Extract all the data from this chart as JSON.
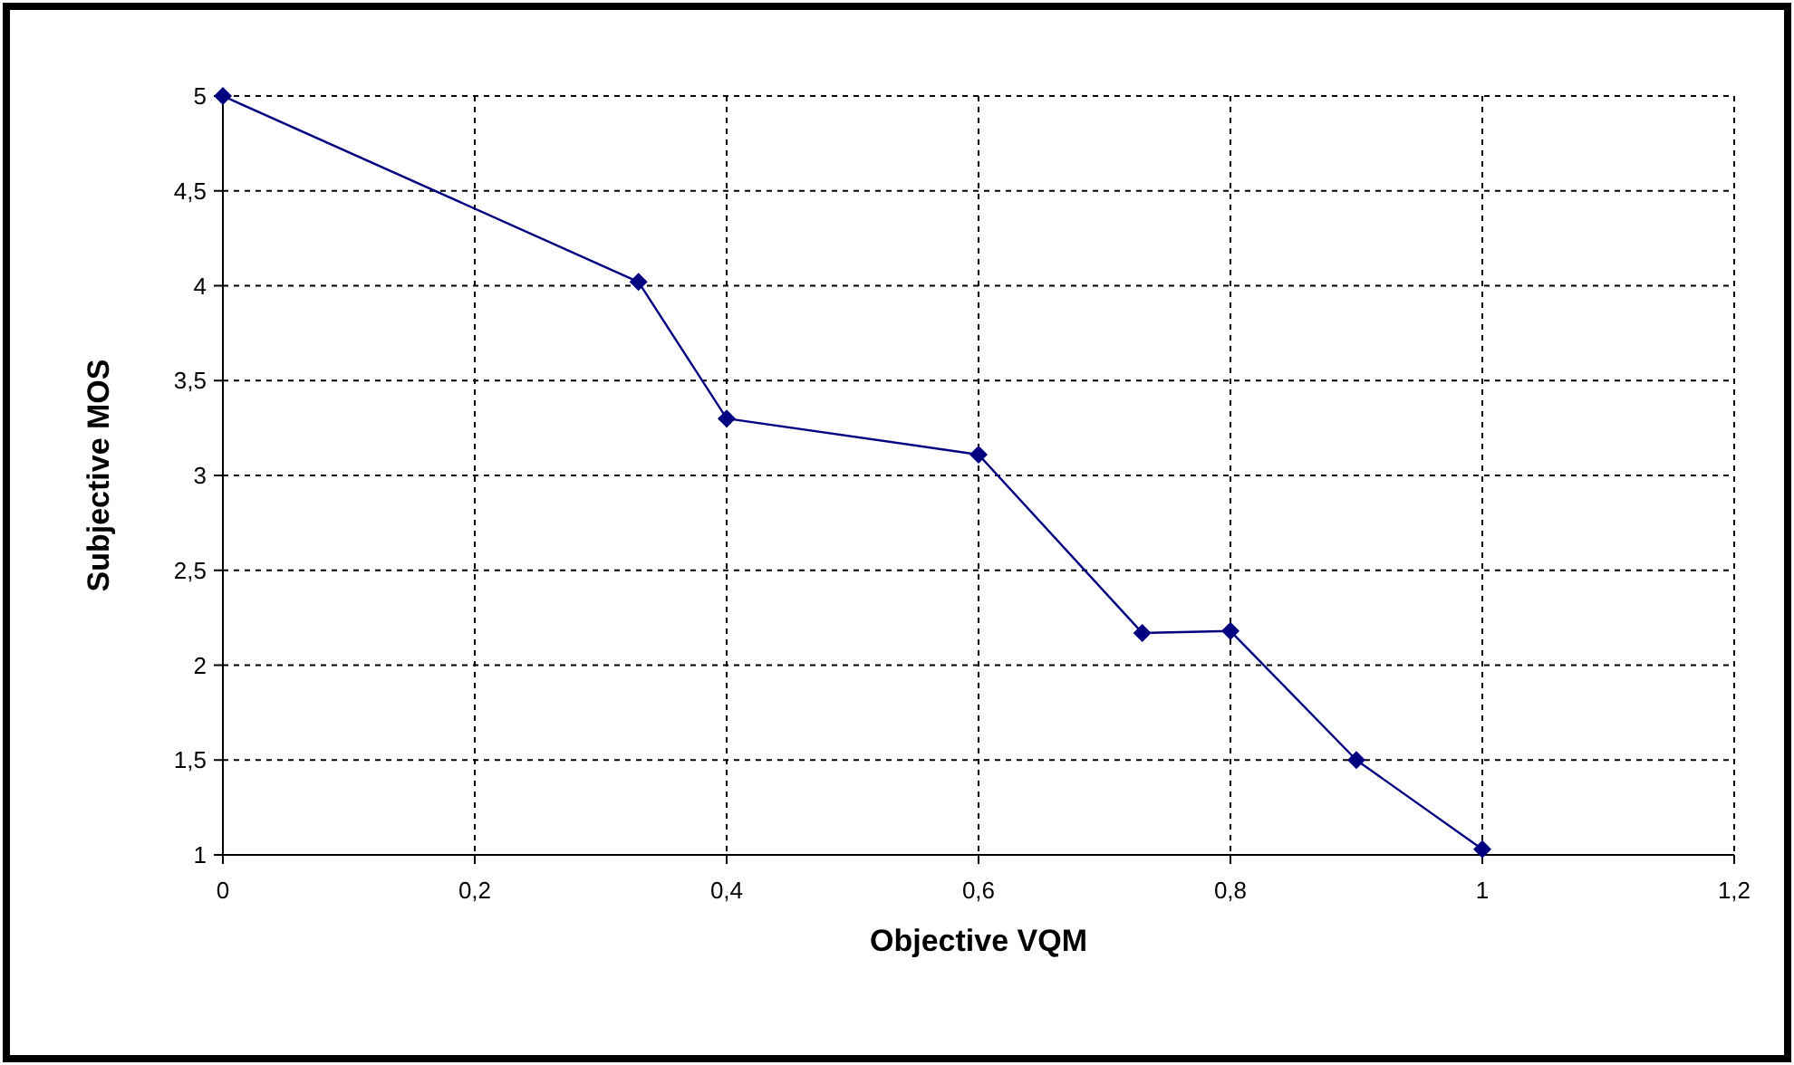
{
  "chart_data": {
    "type": "line",
    "xlabel": "Objective VQM",
    "ylabel": "Subjective MOS",
    "x": [
      0,
      0.33,
      0.4,
      0.6,
      0.73,
      0.8,
      0.9,
      1
    ],
    "series": [
      {
        "color": "#000080",
        "values": [
          5,
          4.02,
          3.3,
          3.11,
          2.17,
          2.18,
          1.5,
          1.03
        ]
      }
    ],
    "xlim": [
      0,
      1.2
    ],
    "xticks": [
      0,
      {
        "value": 0.2,
        "label": "0,2"
      },
      {
        "value": 0.4,
        "label": "0,4"
      },
      {
        "value": 0.6,
        "label": "0,6"
      },
      {
        "value": 0.8,
        "label": "0,8"
      },
      1,
      {
        "value": 1.2,
        "label": "1,2"
      }
    ],
    "ylim": [
      1,
      5
    ],
    "yticks": [
      1,
      {
        "value": 1.5,
        "label": "1,5"
      },
      2,
      {
        "value": 2.5,
        "label": "2,5"
      },
      3,
      {
        "value": 3.5,
        "label": "3,5"
      },
      4,
      {
        "value": 4.5,
        "label": "4,5"
      },
      5
    ],
    "grid": true,
    "marker": "diamond",
    "line_style": "solid"
  }
}
